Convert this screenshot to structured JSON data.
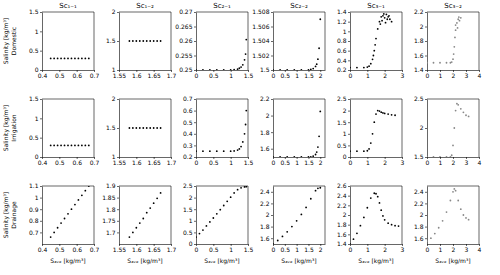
{
  "chart_data": [
    {
      "type": "scatter",
      "title": "Sc₁₋₁",
      "ylabel": "Salinity [kg/m³]",
      "annotation": "Domestic",
      "xlim": [
        0.4,
        0.7
      ],
      "xticks": [
        0.4,
        0.5,
        0.6,
        0.7
      ],
      "ylim": [
        0,
        1.5
      ],
      "yticks": [
        0,
        0.5,
        1,
        1.5
      ],
      "x": [
        0.45,
        0.47,
        0.49,
        0.51,
        0.53,
        0.55,
        0.57,
        0.59,
        0.61,
        0.63,
        0.65,
        0.67
      ],
      "values": [
        0.3,
        0.3,
        0.3,
        0.3,
        0.3,
        0.3,
        0.3,
        0.3,
        0.3,
        0.3,
        0.3,
        0.3
      ],
      "color": "#000000",
      "marker": "dot"
    },
    {
      "type": "scatter",
      "title": "Sc₁₋₂",
      "xlim": [
        1.55,
        1.7
      ],
      "xticks": [
        1.55,
        1.6,
        1.65,
        1.7
      ],
      "ylim": [
        1,
        2
      ],
      "yticks": [
        1,
        1.5,
        2
      ],
      "x": [
        1.58,
        1.59,
        1.6,
        1.61,
        1.62,
        1.63,
        1.64,
        1.65,
        1.66,
        1.67
      ],
      "values": [
        1.5,
        1.5,
        1.5,
        1.5,
        1.5,
        1.5,
        1.5,
        1.5,
        1.5,
        1.5
      ],
      "color": "#000000",
      "marker": "dot"
    },
    {
      "type": "scatter",
      "title": "Sc₂₋₁",
      "xlim": [
        0,
        1.5
      ],
      "xticks": [
        0,
        0.5,
        1,
        1.5
      ],
      "ylim": [
        0.25,
        0.27
      ],
      "yticks": [
        0.25,
        0.255,
        0.26,
        0.265,
        0.27
      ],
      "x": [
        0,
        0.2,
        0.4,
        0.6,
        0.8,
        1.0,
        1.1,
        1.2,
        1.25,
        1.3,
        1.35,
        1.4,
        1.43,
        1.45
      ],
      "values": [
        0.25,
        0.25,
        0.25,
        0.25,
        0.25,
        0.25,
        0.2501,
        0.2503,
        0.2506,
        0.251,
        0.2518,
        0.2535,
        0.2555,
        0.2605
      ],
      "color": "#000000",
      "marker": "dot"
    },
    {
      "type": "scatter",
      "title": "Sc₂₋₂",
      "xlim": [
        0,
        2.2
      ],
      "xticks": [
        0,
        0.5,
        1,
        1.5,
        2
      ],
      "ylim": [
        1.5,
        1.508
      ],
      "yticks": [
        1.5,
        1.502,
        1.504,
        1.506,
        1.508
      ],
      "x": [
        0,
        0.3,
        0.6,
        0.9,
        1.2,
        1.5,
        1.6,
        1.7,
        1.8,
        1.85,
        1.9,
        1.95,
        2.0
      ],
      "values": [
        1.5,
        1.5,
        1.5,
        1.5,
        1.5,
        1.5,
        1.5001,
        1.5002,
        1.5005,
        1.5008,
        1.5015,
        1.503,
        1.507
      ],
      "color": "#000000",
      "marker": "dot"
    },
    {
      "type": "scatter",
      "title": "Sc₃₋₁",
      "xlim": [
        0,
        3
      ],
      "xticks": [
        0,
        1,
        2,
        3
      ],
      "ylim": [
        0.2,
        1.4
      ],
      "yticks": [
        0.2,
        0.4,
        0.6,
        0.8,
        1,
        1.2,
        1.4
      ],
      "x": [
        0,
        0.4,
        0.8,
        1.0,
        1.1,
        1.2,
        1.3,
        1.35,
        1.4,
        1.45,
        1.5,
        1.6,
        1.7,
        1.8,
        1.9,
        2.0,
        2.1,
        2.2,
        2.3,
        2.4,
        1.75,
        1.85,
        1.95,
        2.05,
        2.15,
        2.25
      ],
      "values": [
        0.25,
        0.25,
        0.25,
        0.26,
        0.28,
        0.33,
        0.42,
        0.5,
        0.6,
        0.72,
        0.85,
        1.05,
        1.2,
        1.3,
        1.32,
        1.28,
        1.35,
        1.3,
        1.25,
        1.2,
        1.15,
        1.22,
        1.36,
        1.18,
        1.25,
        1.32
      ],
      "color": "#000000",
      "marker": "dot"
    },
    {
      "type": "scatter",
      "title": "Sc₃₋₂",
      "xlim": [
        0,
        4
      ],
      "xticks": [
        0,
        1,
        2,
        3,
        4
      ],
      "ylim": [
        1.4,
        2.2
      ],
      "yticks": [
        1.4,
        1.6,
        1.8,
        2,
        2.2
      ],
      "x": [
        0,
        0.5,
        1.0,
        1.5,
        1.8,
        1.9,
        2.0,
        2.05,
        2.1,
        2.15,
        2.2,
        2.3,
        2.4,
        2.5,
        2.6,
        2.2,
        2.35,
        2.45
      ],
      "values": [
        1.5,
        1.5,
        1.5,
        1.5,
        1.5,
        1.51,
        1.55,
        1.62,
        1.72,
        1.85,
        1.95,
        2.05,
        2.1,
        2.08,
        2.12,
        2.02,
        1.98,
        2.13
      ],
      "color": "#888888",
      "marker": "dot"
    },
    {
      "type": "scatter",
      "ylabel": "Salinity [kg/m³]",
      "annotation": "Irrigation",
      "xlim": [
        0.4,
        0.7
      ],
      "xticks": [
        0.4,
        0.5,
        0.6,
        0.7
      ],
      "ylim": [
        0,
        1.5
      ],
      "yticks": [
        0,
        0.5,
        1,
        1.5
      ],
      "x": [
        0.45,
        0.47,
        0.49,
        0.51,
        0.53,
        0.55,
        0.57,
        0.59,
        0.61,
        0.63,
        0.65,
        0.67
      ],
      "values": [
        0.3,
        0.3,
        0.3,
        0.3,
        0.3,
        0.3,
        0.3,
        0.3,
        0.3,
        0.3,
        0.3,
        0.3
      ],
      "color": "#000000",
      "marker": "dot"
    },
    {
      "type": "scatter",
      "xlim": [
        1.55,
        1.7
      ],
      "xticks": [
        1.55,
        1.6,
        1.65,
        1.7
      ],
      "ylim": [
        1,
        2
      ],
      "yticks": [
        1,
        1.5,
        2
      ],
      "x": [
        1.58,
        1.59,
        1.6,
        1.61,
        1.62,
        1.63,
        1.64,
        1.65,
        1.66,
        1.67
      ],
      "values": [
        1.5,
        1.5,
        1.5,
        1.5,
        1.5,
        1.5,
        1.5,
        1.5,
        1.5,
        1.5
      ],
      "color": "#000000",
      "marker": "dot"
    },
    {
      "type": "scatter",
      "xlim": [
        0,
        1.5
      ],
      "xticks": [
        0,
        0.5,
        1,
        1.5
      ],
      "ylim": [
        0.2,
        0.7
      ],
      "yticks": [
        0.2,
        0.3,
        0.4,
        0.5,
        0.6,
        0.7
      ],
      "x": [
        0,
        0.2,
        0.4,
        0.6,
        0.8,
        1.0,
        1.1,
        1.2,
        1.25,
        1.3,
        1.35,
        1.4,
        1.43,
        1.45
      ],
      "values": [
        0.25,
        0.25,
        0.25,
        0.25,
        0.25,
        0.25,
        0.252,
        0.26,
        0.27,
        0.29,
        0.33,
        0.4,
        0.48,
        0.6
      ],
      "color": "#000000",
      "marker": "dot"
    },
    {
      "type": "scatter",
      "xlim": [
        0,
        2.2
      ],
      "xticks": [
        0,
        0.5,
        1,
        1.5,
        2
      ],
      "ylim": [
        1.5,
        2.2
      ],
      "yticks": [
        1.6,
        1.8,
        2,
        2.2
      ],
      "x": [
        0,
        0.3,
        0.6,
        0.9,
        1.2,
        1.5,
        1.6,
        1.7,
        1.8,
        1.85,
        1.9,
        1.95,
        2.0
      ],
      "values": [
        1.5,
        1.5,
        1.5,
        1.5,
        1.5,
        1.5,
        1.502,
        1.51,
        1.53,
        1.56,
        1.62,
        1.75,
        2.05
      ],
      "color": "#000000",
      "marker": "dot"
    },
    {
      "type": "scatter",
      "xlim": [
        0,
        3
      ],
      "xticks": [
        0,
        1,
        2,
        3
      ],
      "ylim": [
        0,
        2.5
      ],
      "yticks": [
        0,
        0.5,
        1,
        1.5,
        2,
        2.5
      ],
      "x": [
        0,
        0.4,
        0.8,
        1.0,
        1.1,
        1.2,
        1.3,
        1.4,
        1.5,
        1.6,
        1.7,
        1.8,
        1.9,
        2.0,
        2.2,
        2.4,
        2.6
      ],
      "values": [
        0.25,
        0.25,
        0.25,
        0.27,
        0.35,
        0.6,
        1.0,
        1.5,
        1.85,
        2.0,
        1.98,
        1.93,
        1.9,
        1.88,
        1.85,
        1.82,
        1.8
      ],
      "color": "#000000",
      "marker": "dot"
    },
    {
      "type": "scatter",
      "xlim": [
        0,
        4
      ],
      "xticks": [
        0,
        1,
        2,
        3,
        4
      ],
      "ylim": [
        1.5,
        2.5
      ],
      "yticks": [
        1.5,
        2,
        2.5
      ],
      "x": [
        0,
        0.5,
        1.0,
        1.5,
        1.8,
        1.9,
        2.0,
        2.1,
        2.2,
        2.3,
        2.4,
        2.6,
        2.8,
        3.0,
        3.2
      ],
      "values": [
        1.5,
        1.5,
        1.5,
        1.5,
        1.5,
        1.53,
        1.7,
        2.0,
        2.3,
        2.42,
        2.4,
        2.33,
        2.27,
        2.22,
        2.2
      ],
      "color": "#888888",
      "marker": "dot"
    },
    {
      "type": "scatter",
      "ylabel": "Salinity [kg/m³]",
      "annotation": "Drainage",
      "xlabel": "Sₐᵥₑ [kg/m³]",
      "xlim": [
        0.4,
        0.7
      ],
      "xticks": [
        0.4,
        0.5,
        0.6,
        0.7
      ],
      "ylim": [
        0.6,
        1.1
      ],
      "yticks": [
        0.7,
        0.8,
        0.9,
        1,
        1.1
      ],
      "x": [
        0.45,
        0.47,
        0.49,
        0.51,
        0.53,
        0.55,
        0.57,
        0.59,
        0.61,
        0.63,
        0.65,
        0.67
      ],
      "values": [
        0.66,
        0.7,
        0.74,
        0.78,
        0.82,
        0.86,
        0.9,
        0.94,
        0.98,
        1.02,
        1.06,
        1.1
      ],
      "color": "#000000",
      "marker": "dot"
    },
    {
      "type": "scatter",
      "xlabel": "Sₐᵥₑ [kg/m³]",
      "xlim": [
        1.55,
        1.7
      ],
      "xticks": [
        1.55,
        1.6,
        1.65,
        1.7
      ],
      "ylim": [
        1.65,
        1.9
      ],
      "yticks": [
        1.7,
        1.75,
        1.8,
        1.85,
        1.9
      ],
      "x": [
        1.58,
        1.59,
        1.6,
        1.61,
        1.62,
        1.63,
        1.64,
        1.65,
        1.66,
        1.67
      ],
      "values": [
        1.68,
        1.7,
        1.72,
        1.74,
        1.76,
        1.785,
        1.805,
        1.826,
        1.847,
        1.87
      ],
      "color": "#000000",
      "marker": "dot"
    },
    {
      "type": "scatter",
      "xlabel": "Sₐᵥₑ [kg/m³]",
      "xlim": [
        0,
        1.5
      ],
      "xticks": [
        0,
        0.5,
        1,
        1.5
      ],
      "ylim": [
        0,
        2.5
      ],
      "yticks": [
        0,
        0.5,
        1,
        1.5,
        2,
        2.5
      ],
      "x": [
        0,
        0.1,
        0.2,
        0.3,
        0.4,
        0.5,
        0.6,
        0.7,
        0.8,
        0.9,
        1.0,
        1.1,
        1.2,
        1.3,
        1.4,
        1.45
      ],
      "values": [
        0.3,
        0.45,
        0.6,
        0.78,
        0.95,
        1.12,
        1.3,
        1.48,
        1.66,
        1.84,
        2.02,
        2.2,
        2.34,
        2.42,
        2.46,
        2.47
      ],
      "color": "#000000",
      "marker": "dot"
    },
    {
      "type": "scatter",
      "xlabel": "Sₐᵥₑ [kg/m³]",
      "xlim": [
        0,
        2.2
      ],
      "xticks": [
        0,
        0.5,
        1,
        1.5,
        2
      ],
      "ylim": [
        1.5,
        2.5
      ],
      "yticks": [
        1.6,
        1.8,
        2,
        2.2,
        2.4
      ],
      "x": [
        0,
        0.2,
        0.4,
        0.6,
        0.8,
        1.0,
        1.2,
        1.4,
        1.6,
        1.8,
        1.9,
        2.0
      ],
      "values": [
        1.5,
        1.56,
        1.63,
        1.71,
        1.8,
        1.9,
        2.01,
        2.13,
        2.28,
        2.42,
        2.46,
        2.47
      ],
      "color": "#000000",
      "marker": "dot"
    },
    {
      "type": "scatter",
      "xlabel": "Sₐᵥₑ [kg/m³]",
      "xlim": [
        0,
        3
      ],
      "xticks": [
        0,
        1,
        2,
        3
      ],
      "ylim": [
        1.4,
        2.6
      ],
      "yticks": [
        1.4,
        1.6,
        1.8,
        2,
        2.2,
        2.4,
        2.6
      ],
      "x": [
        0,
        0.2,
        0.4,
        0.6,
        0.8,
        1.0,
        1.2,
        1.4,
        1.5,
        1.6,
        1.7,
        1.8,
        1.9,
        2.0,
        2.2,
        2.4,
        2.6,
        2.8
      ],
      "values": [
        1.4,
        1.5,
        1.62,
        1.78,
        1.95,
        2.15,
        2.35,
        2.45,
        2.44,
        2.38,
        2.25,
        2.1,
        1.98,
        1.9,
        1.83,
        1.8,
        1.78,
        1.77
      ],
      "color": "#000000",
      "marker": "dot"
    },
    {
      "type": "scatter",
      "xlabel": "Sₐᵥₑ [kg/m³]",
      "xlim": [
        0,
        4
      ],
      "xticks": [
        0,
        1,
        2,
        3,
        4
      ],
      "ylim": [
        1.5,
        2.5
      ],
      "yticks": [
        1.6,
        1.8,
        2,
        2.2,
        2.4
      ],
      "x": [
        0,
        0.3,
        0.6,
        0.9,
        1.2,
        1.5,
        1.8,
        2.0,
        2.1,
        2.2,
        2.4,
        2.6,
        2.8,
        3.0,
        3.2
      ],
      "values": [
        1.55,
        1.6,
        1.68,
        1.78,
        1.9,
        2.05,
        2.25,
        2.4,
        2.45,
        2.42,
        2.25,
        2.1,
        2.0,
        1.95,
        1.92
      ],
      "color": "#888888",
      "marker": "dot"
    }
  ]
}
